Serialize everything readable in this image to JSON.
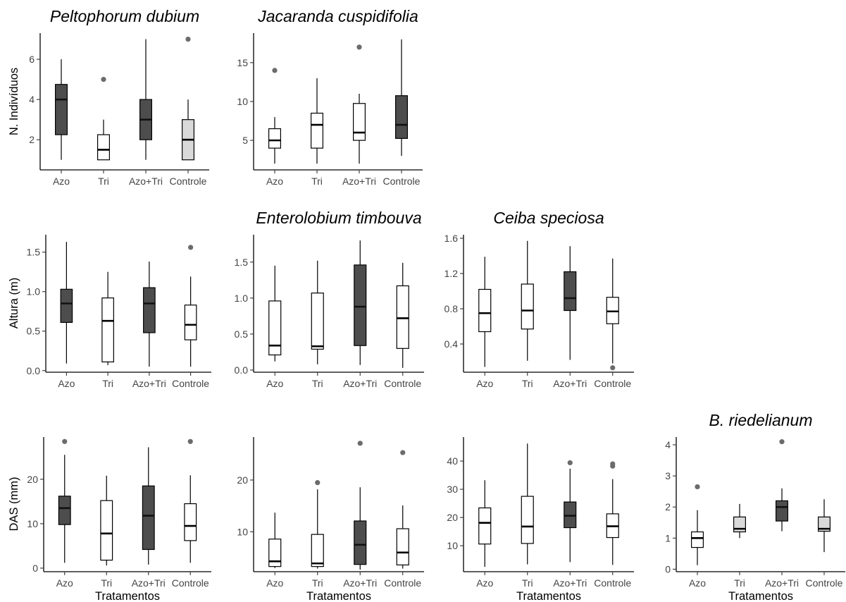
{
  "figure": {
    "row_ylabels": [
      "N. Indivíduos",
      "Altura (m)",
      "DAS (mm)"
    ],
    "xlabel": "Tratamentos"
  },
  "chart_data": [
    {
      "type": "box",
      "title": "Peltophorum dubium",
      "ylabel": "N. Indivíduos",
      "xlabel": "",
      "categories": [
        "Azo",
        "Tri",
        "Azo+Tri",
        "Controle"
      ],
      "ylim": [
        0.5,
        7.3
      ],
      "yticks": [
        2,
        4,
        6
      ],
      "boxes": [
        {
          "min": 1,
          "q1": 2.25,
          "median": 4,
          "q3": 4.75,
          "max": 6,
          "outliers": [],
          "fill": "#4d4d4d"
        },
        {
          "min": 1,
          "q1": 1,
          "median": 1.5,
          "q3": 2.25,
          "max": 3,
          "outliers": [
            5
          ],
          "fill": "#ffffff"
        },
        {
          "min": 1,
          "q1": 2,
          "median": 3,
          "q3": 4,
          "max": 7,
          "outliers": [],
          "fill": "#4d4d4d"
        },
        {
          "min": 1,
          "q1": 1,
          "median": 2,
          "q3": 3,
          "max": 4,
          "outliers": [
            7
          ],
          "fill": "#d9d9d9"
        }
      ]
    },
    {
      "type": "box",
      "title": "Jacaranda cuspidifolia",
      "ylabel": "",
      "xlabel": "",
      "categories": [
        "Azo",
        "Tri",
        "Azo+Tri",
        "Controle"
      ],
      "ylim": [
        1.2,
        18.8
      ],
      "yticks": [
        5,
        10,
        15
      ],
      "boxes": [
        {
          "min": 2,
          "q1": 4,
          "median": 5,
          "q3": 6.5,
          "max": 8,
          "outliers": [
            14
          ],
          "fill": "#ffffff"
        },
        {
          "min": 2,
          "q1": 4,
          "median": 7,
          "q3": 8.5,
          "max": 13,
          "outliers": [],
          "fill": "#ffffff"
        },
        {
          "min": 2,
          "q1": 5,
          "median": 6,
          "q3": 9.75,
          "max": 11,
          "outliers": [
            17
          ],
          "fill": "#ffffff"
        },
        {
          "min": 3,
          "q1": 5.25,
          "median": 7,
          "q3": 10.75,
          "max": 18,
          "outliers": [],
          "fill": "#4d4d4d"
        }
      ]
    },
    {
      "type": "box",
      "title": "",
      "ylabel": "Altura (m)",
      "xlabel": "",
      "categories": [
        "Azo",
        "Tri",
        "Azo+Tri",
        "Controle"
      ],
      "ylim": [
        -0.02,
        1.72
      ],
      "yticks": [
        0.0,
        0.5,
        1.0,
        1.5
      ],
      "boxes": [
        {
          "min": 0.09,
          "q1": 0.61,
          "median": 0.85,
          "q3": 1.03,
          "max": 1.63,
          "outliers": [],
          "fill": "#4d4d4d"
        },
        {
          "min": 0.07,
          "q1": 0.11,
          "median": 0.63,
          "q3": 0.92,
          "max": 1.25,
          "outliers": [],
          "fill": "#ffffff"
        },
        {
          "min": 0.05,
          "q1": 0.48,
          "median": 0.85,
          "q3": 1.05,
          "max": 1.38,
          "outliers": [],
          "fill": "#4d4d4d"
        },
        {
          "min": 0.05,
          "q1": 0.39,
          "median": 0.58,
          "q3": 0.83,
          "max": 1.19,
          "outliers": [
            1.56
          ],
          "fill": "#ffffff"
        }
      ]
    },
    {
      "type": "box",
      "title": "Enterolobium timbouva",
      "ylabel": "",
      "xlabel": "",
      "categories": [
        "Azo",
        "Tri",
        "Azo+Tri",
        "Controle"
      ],
      "ylim": [
        -0.03,
        1.88
      ],
      "yticks": [
        0.0,
        0.5,
        1.0,
        1.5
      ],
      "boxes": [
        {
          "min": 0.12,
          "q1": 0.21,
          "median": 0.34,
          "q3": 0.96,
          "max": 1.45,
          "outliers": [],
          "fill": "#ffffff"
        },
        {
          "min": 0.08,
          "q1": 0.29,
          "median": 0.33,
          "q3": 1.07,
          "max": 1.52,
          "outliers": [],
          "fill": "#ffffff"
        },
        {
          "min": 0.07,
          "q1": 0.34,
          "median": 0.88,
          "q3": 1.46,
          "max": 1.8,
          "outliers": [],
          "fill": "#4d4d4d"
        },
        {
          "min": 0.03,
          "q1": 0.3,
          "median": 0.72,
          "q3": 1.17,
          "max": 1.49,
          "outliers": [],
          "fill": "#ffffff"
        }
      ]
    },
    {
      "type": "box",
      "title": "Ceiba speciosa",
      "ylabel": "",
      "xlabel": "",
      "categories": [
        "Azo",
        "Tri",
        "Azo+Tri",
        "Controle"
      ],
      "ylim": [
        0.08,
        1.64
      ],
      "yticks": [
        0.4,
        0.8,
        1.2,
        1.6
      ],
      "boxes": [
        {
          "min": 0.14,
          "q1": 0.54,
          "median": 0.75,
          "q3": 1.02,
          "max": 1.39,
          "outliers": [],
          "fill": "#ffffff"
        },
        {
          "min": 0.21,
          "q1": 0.57,
          "median": 0.78,
          "q3": 1.08,
          "max": 1.57,
          "outliers": [],
          "fill": "#ffffff"
        },
        {
          "min": 0.22,
          "q1": 0.78,
          "median": 0.92,
          "q3": 1.22,
          "max": 1.51,
          "outliers": [],
          "fill": "#4d4d4d"
        },
        {
          "min": 0.18,
          "q1": 0.63,
          "median": 0.77,
          "q3": 0.93,
          "max": 1.37,
          "outliers": [
            0.13
          ],
          "fill": "#ffffff"
        }
      ]
    },
    {
      "type": "box",
      "title": "",
      "ylabel": "DAS (mm)",
      "xlabel": "Tratamentos",
      "categories": [
        "Azo",
        "Tri",
        "Azo+Tri",
        "Controle"
      ],
      "ylim": [
        -0.8,
        29.5
      ],
      "yticks": [
        0,
        10,
        20
      ],
      "boxes": [
        {
          "min": 1.2,
          "q1": 9.8,
          "median": 13.5,
          "q3": 16.2,
          "max": 25.5,
          "outliers": [
            28.5
          ],
          "fill": "#4d4d4d"
        },
        {
          "min": 0.6,
          "q1": 1.8,
          "median": 7.8,
          "q3": 15.2,
          "max": 20.8,
          "outliers": [],
          "fill": "#ffffff"
        },
        {
          "min": 0.8,
          "q1": 4.2,
          "median": 11.8,
          "q3": 18.5,
          "max": 27.2,
          "outliers": [],
          "fill": "#4d4d4d"
        },
        {
          "min": 1.2,
          "q1": 6.2,
          "median": 9.5,
          "q3": 14.5,
          "max": 20.9,
          "outliers": [
            28.5
          ],
          "fill": "#ffffff"
        }
      ]
    },
    {
      "type": "box",
      "title": "",
      "ylabel": "",
      "xlabel": "Tratamentos",
      "categories": [
        "Azo",
        "Tri",
        "Azo+Tri",
        "Controle"
      ],
      "ylim": [
        2.3,
        28.3
      ],
      "yticks": [
        10,
        20
      ],
      "boxes": [
        {
          "min": 3,
          "q1": 3.3,
          "median": 4.3,
          "q3": 8.6,
          "max": 13.7,
          "outliers": [],
          "fill": "#ffffff"
        },
        {
          "min": 2.9,
          "q1": 3.3,
          "median": 3.9,
          "q3": 9.5,
          "max": 18.2,
          "outliers": [
            19.5
          ],
          "fill": "#ffffff"
        },
        {
          "min": 2.7,
          "q1": 3.7,
          "median": 7.5,
          "q3": 12.1,
          "max": 18.6,
          "outliers": [
            27.1
          ],
          "fill": "#4d4d4d"
        },
        {
          "min": 2.9,
          "q1": 3.6,
          "median": 6.0,
          "q3": 10.6,
          "max": 15.1,
          "outliers": [
            25.3
          ],
          "fill": "#ffffff"
        }
      ]
    },
    {
      "type": "box",
      "title": "",
      "ylabel": "",
      "xlabel": "Tratamentos",
      "categories": [
        "Azo",
        "Tri",
        "Azo+Tri",
        "Controle"
      ],
      "ylim": [
        0.8,
        48.5
      ],
      "yticks": [
        10,
        20,
        30,
        40
      ],
      "boxes": [
        {
          "min": 2.5,
          "q1": 10.6,
          "median": 18.1,
          "q3": 23.4,
          "max": 33.2,
          "outliers": [],
          "fill": "#ffffff"
        },
        {
          "min": 3.4,
          "q1": 10.8,
          "median": 16.8,
          "q3": 27.5,
          "max": 46.2,
          "outliers": [],
          "fill": "#ffffff"
        },
        {
          "min": 4.2,
          "q1": 16.4,
          "median": 20.6,
          "q3": 25.5,
          "max": 37.3,
          "outliers": [
            39.4
          ],
          "fill": "#4d4d4d"
        },
        {
          "min": 3.2,
          "q1": 12.9,
          "median": 16.9,
          "q3": 21.3,
          "max": 33.6,
          "outliers": [
            38.2,
            39.0
          ],
          "fill": "#ffffff"
        }
      ]
    },
    {
      "type": "box",
      "title": "B. riedelianum",
      "ylabel": "",
      "xlabel": "Tratamentos",
      "categories": [
        "Azo",
        "Tri",
        "Azo+Tri",
        "Controle"
      ],
      "ylim": [
        -0.08,
        4.25
      ],
      "yticks": [
        0,
        1,
        2,
        3,
        4
      ],
      "boxes": [
        {
          "min": 0.13,
          "q1": 0.7,
          "median": 1.0,
          "q3": 1.2,
          "max": 1.9,
          "outliers": [
            2.65
          ],
          "fill": "#ffffff"
        },
        {
          "min": 1.0,
          "q1": 1.2,
          "median": 1.3,
          "q3": 1.68,
          "max": 2.1,
          "outliers": [],
          "fill": "#d9d9d9"
        },
        {
          "min": 1.22,
          "q1": 1.55,
          "median": 2.0,
          "q3": 2.2,
          "max": 2.6,
          "outliers": [
            4.1
          ],
          "fill": "#4d4d4d"
        },
        {
          "min": 0.55,
          "q1": 1.22,
          "median": 1.3,
          "q3": 1.68,
          "max": 2.25,
          "outliers": [],
          "fill": "#d9d9d9"
        }
      ]
    }
  ]
}
